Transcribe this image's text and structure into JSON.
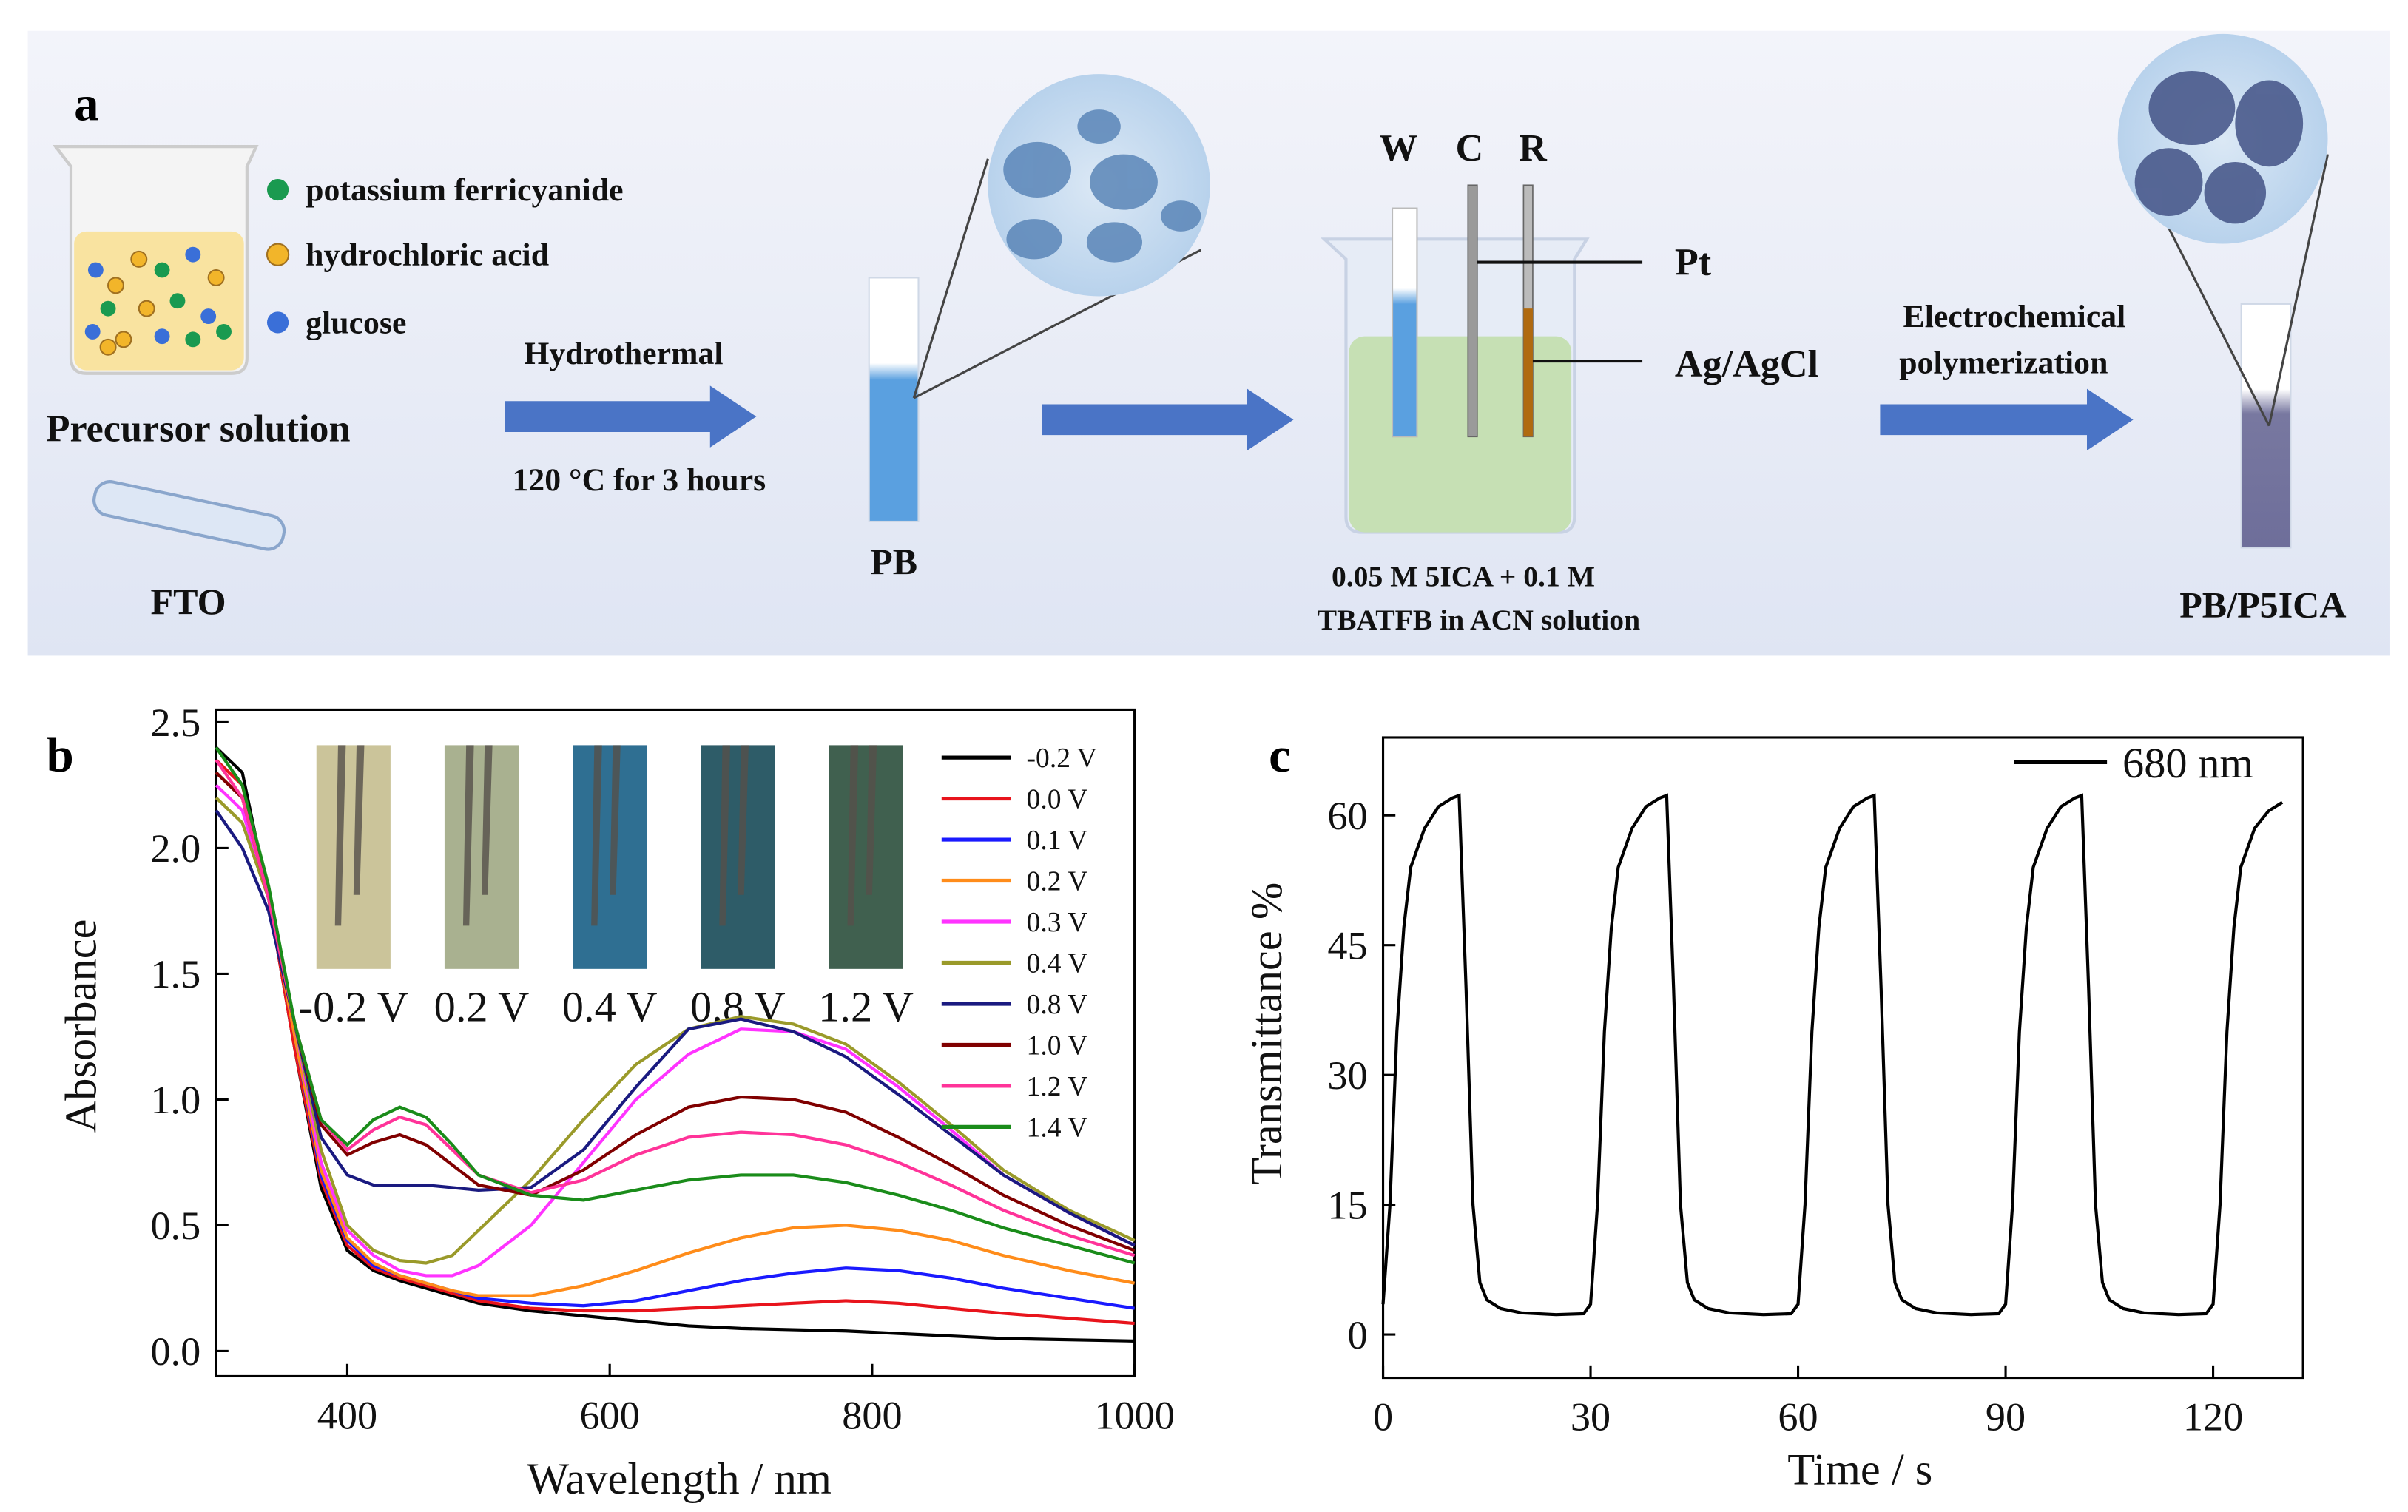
{
  "schematic": {
    "panel_label": "a",
    "legend": [
      "potassium ferricyanide",
      "hydrochloric acid",
      "glucose"
    ],
    "precursor": "Precursor solution",
    "substrate": "FTO",
    "step1": [
      "Hydrothermal",
      "120 °C for 3 hours"
    ],
    "product1": "PB",
    "electrodes": [
      "W",
      "C",
      "R"
    ],
    "counter": "Pt",
    "reference": "Ag/AgCl",
    "solution": [
      "0.05 M 5ICA + 0.1 M",
      "TBATFB in ACN solution"
    ],
    "step2": [
      "Electrochemical",
      "polymerization"
    ],
    "product2": "PB/P5ICA"
  },
  "chart_data": [
    {
      "type": "line",
      "panel_label": "b",
      "x_label": "Wavelength / nm",
      "y_label": "Absorbance",
      "x": [
        300,
        320,
        340,
        360,
        380,
        400,
        420,
        440,
        460,
        480,
        500,
        540,
        580,
        620,
        660,
        700,
        740,
        780,
        820,
        860,
        900,
        950,
        1000
      ],
      "series": [
        {
          "name": "-0.2 V",
          "color": "#000000",
          "values": [
            2.4,
            2.3,
            1.8,
            1.2,
            0.65,
            0.4,
            0.32,
            0.28,
            0.25,
            0.22,
            0.19,
            0.16,
            0.14,
            0.12,
            0.1,
            0.09,
            0.085,
            0.08,
            0.07,
            0.06,
            0.05,
            0.045,
            0.04
          ]
        },
        {
          "name": "0.0 V",
          "color": "#e8141c",
          "values": [
            2.35,
            2.25,
            1.8,
            1.2,
            0.68,
            0.42,
            0.33,
            0.29,
            0.26,
            0.23,
            0.2,
            0.17,
            0.16,
            0.16,
            0.17,
            0.18,
            0.19,
            0.2,
            0.19,
            0.17,
            0.15,
            0.13,
            0.11
          ]
        },
        {
          "name": "0.1 V",
          "color": "#1a1aff",
          "values": [
            2.3,
            2.2,
            1.8,
            1.25,
            0.7,
            0.44,
            0.34,
            0.3,
            0.27,
            0.24,
            0.21,
            0.19,
            0.18,
            0.2,
            0.24,
            0.28,
            0.31,
            0.33,
            0.32,
            0.29,
            0.25,
            0.21,
            0.17
          ]
        },
        {
          "name": "0.2 V",
          "color": "#ff8c1a",
          "values": [
            2.3,
            2.2,
            1.8,
            1.25,
            0.72,
            0.45,
            0.35,
            0.3,
            0.27,
            0.24,
            0.22,
            0.22,
            0.26,
            0.32,
            0.39,
            0.45,
            0.49,
            0.5,
            0.48,
            0.44,
            0.38,
            0.32,
            0.27
          ]
        },
        {
          "name": "0.3 V",
          "color": "#ff33ff",
          "values": [
            2.25,
            2.15,
            1.8,
            1.3,
            0.75,
            0.48,
            0.38,
            0.32,
            0.3,
            0.3,
            0.34,
            0.5,
            0.75,
            1.0,
            1.18,
            1.28,
            1.27,
            1.2,
            1.05,
            0.88,
            0.7,
            0.55,
            0.42
          ]
        },
        {
          "name": "0.4 V",
          "color": "#9a9a2a",
          "values": [
            2.2,
            2.1,
            1.8,
            1.3,
            0.8,
            0.5,
            0.4,
            0.36,
            0.35,
            0.38,
            0.48,
            0.68,
            0.92,
            1.14,
            1.28,
            1.33,
            1.3,
            1.22,
            1.07,
            0.9,
            0.72,
            0.56,
            0.44
          ]
        },
        {
          "name": "0.8 V",
          "color": "#1a1a80",
          "values": [
            2.15,
            2.0,
            1.75,
            1.3,
            0.85,
            0.7,
            0.66,
            0.66,
            0.66,
            0.65,
            0.64,
            0.65,
            0.8,
            1.05,
            1.28,
            1.32,
            1.27,
            1.17,
            1.02,
            0.86,
            0.7,
            0.55,
            0.42
          ]
        },
        {
          "name": "1.0 V",
          "color": "#800000",
          "values": [
            2.3,
            2.2,
            1.8,
            1.3,
            0.9,
            0.78,
            0.83,
            0.86,
            0.82,
            0.74,
            0.66,
            0.62,
            0.72,
            0.86,
            0.97,
            1.01,
            1.0,
            0.95,
            0.85,
            0.74,
            0.62,
            0.5,
            0.4
          ]
        },
        {
          "name": "1.2 V",
          "color": "#ff3399",
          "values": [
            2.35,
            2.2,
            1.8,
            1.3,
            0.92,
            0.8,
            0.88,
            0.93,
            0.9,
            0.8,
            0.7,
            0.63,
            0.68,
            0.78,
            0.85,
            0.87,
            0.86,
            0.82,
            0.75,
            0.66,
            0.56,
            0.46,
            0.38
          ]
        },
        {
          "name": "1.4 V",
          "color": "#1a8c1a",
          "values": [
            2.4,
            2.25,
            1.85,
            1.3,
            0.92,
            0.82,
            0.92,
            0.97,
            0.93,
            0.82,
            0.7,
            0.62,
            0.6,
            0.64,
            0.68,
            0.7,
            0.7,
            0.67,
            0.62,
            0.56,
            0.49,
            0.42,
            0.35
          ]
        }
      ],
      "annotations": [
        "-0.2 V",
        "0.2 V",
        "0.4 V",
        "0.8 V",
        "1.2 V"
      ],
      "xlim": [
        300,
        1000
      ],
      "xticks": [
        400,
        600,
        800,
        1000
      ],
      "ylim": [
        -0.1,
        2.55
      ],
      "yticks": [
        {
          "value": 0,
          "label": "0.0"
        },
        0.5,
        {
          "value": 1,
          "label": "1.0"
        },
        1.5,
        {
          "value": 2,
          "label": "2.0"
        },
        2.5
      ]
    },
    {
      "type": "line",
      "panel_label": "c",
      "x_label": "Time / s",
      "y_label": "Transmittance %",
      "x": [
        0,
        1,
        2,
        3,
        4,
        6,
        8,
        10,
        11,
        12,
        13,
        14,
        15,
        17,
        20,
        25,
        29,
        30,
        31,
        32,
        33,
        34,
        36,
        38,
        40,
        41,
        42,
        43,
        44,
        45,
        47,
        50,
        55,
        59,
        60,
        61,
        62,
        63,
        64,
        66,
        68,
        70,
        71,
        72,
        73,
        74,
        75,
        77,
        80,
        85,
        89,
        90,
        91,
        92,
        93,
        94,
        96,
        98,
        100,
        101,
        102,
        103,
        104,
        105,
        107,
        110,
        115,
        119,
        120,
        121,
        122,
        123,
        124,
        126,
        128,
        130
      ],
      "series": [
        {
          "name": "680 nm",
          "color": "#000000",
          "values": [
            3.5,
            15,
            35,
            47,
            54,
            58.5,
            61,
            62,
            62.3,
            40,
            15,
            6,
            4,
            3,
            2.5,
            2.3,
            2.4,
            3.5,
            15,
            35,
            47,
            54,
            58.5,
            61,
            62,
            62.3,
            40,
            15,
            6,
            4,
            3,
            2.5,
            2.3,
            2.4,
            3.5,
            15,
            35,
            47,
            54,
            58.5,
            61,
            62,
            62.3,
            40,
            15,
            6,
            4,
            3,
            2.5,
            2.3,
            2.4,
            3.5,
            15,
            35,
            47,
            54,
            58.5,
            61,
            62,
            62.3,
            40,
            15,
            6,
            4,
            3,
            2.5,
            2.3,
            2.4,
            3.5,
            15,
            35,
            47,
            54,
            58.5,
            60.5,
            61.5
          ]
        }
      ],
      "xlim": [
        0,
        133
      ],
      "xticks": [
        0,
        30,
        60,
        90,
        120
      ],
      "ylim": [
        -5,
        69
      ],
      "yticks": [
        0,
        15,
        30,
        45,
        60
      ]
    }
  ]
}
